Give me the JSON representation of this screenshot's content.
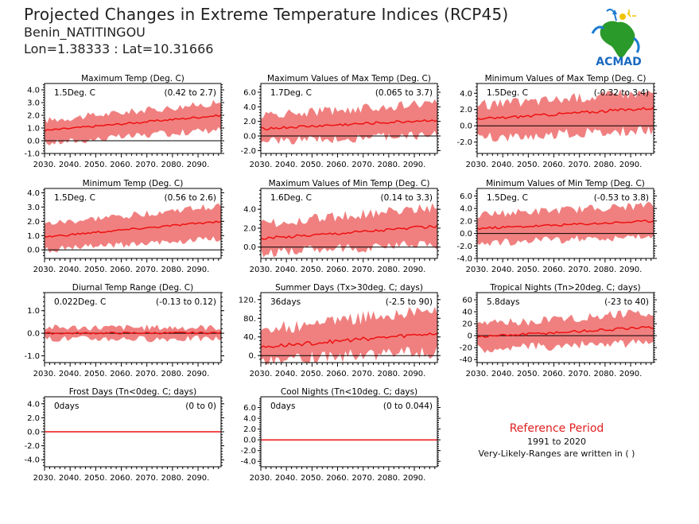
{
  "header": {
    "title": "Projected Changes in Extreme Temperature Indices (RCP45)",
    "station": "Benin_NATITINGOU",
    "coords": "Lon=1.38333 : Lat=10.31666"
  },
  "logo": {
    "text": "ACMAD"
  },
  "reference": {
    "title": "Reference Period",
    "years": "1991 to 2020",
    "note": "Very-Likely-Ranges are written in ( )"
  },
  "colors": {
    "band": "#f08080",
    "line": "#ee1111",
    "zero": "#000000",
    "axis": "#000000"
  },
  "chart_data": [
    {
      "type": "line",
      "title": "Maximum Temp (Deg. C)",
      "value_label": "1.5Deg. C",
      "range_label": "(0.42 to 2.7)",
      "x": [
        2030,
        2099
      ],
      "xticks": [
        "2030.",
        "2040.",
        "2050.",
        "2060.",
        "2070.",
        "2080.",
        "2090."
      ],
      "ylim": [
        -1.0,
        4.5
      ],
      "yticks": [
        4.0,
        3.0,
        2.0,
        1.0,
        0.0,
        -1.0
      ],
      "ytick_labels": [
        "4.0",
        "3.0",
        "2.0",
        "1.0",
        "0.0",
        "-1.0"
      ],
      "trend_start": 0.8,
      "trend_end": 2.0,
      "band_low_start": -0.2,
      "band_low_end": 0.9,
      "band_high_start": 1.6,
      "band_high_end": 3.0,
      "noise": 0.35
    },
    {
      "type": "line",
      "title": "Maximum Values of Max Temp (Deg. C)",
      "value_label": "1.7Deg. C",
      "range_label": "(0.065 to 3.7)",
      "x": [
        2030,
        2099
      ],
      "xticks": [
        "2030.",
        "2040.",
        "2050.",
        "2060.",
        "2070.",
        "2080.",
        "2090."
      ],
      "ylim": [
        -2.4,
        7.2
      ],
      "yticks": [
        6.0,
        4.0,
        2.0,
        0.0,
        -2.0
      ],
      "ytick_labels": [
        "6.0",
        "4.0",
        "2.0",
        "0.0",
        "-2.0"
      ],
      "trend_start": 1.0,
      "trend_end": 2.2,
      "band_low_start": -0.8,
      "band_low_end": 0.2,
      "band_high_start": 2.8,
      "band_high_end": 4.5,
      "noise": 0.8
    },
    {
      "type": "line",
      "title": "Minimum Values of Max Temp (Deg. C)",
      "value_label": "1.5Deg. C",
      "range_label": "(-0.32 to 3.4)",
      "x": [
        2030,
        2099
      ],
      "xticks": [
        "2030.",
        "2040.",
        "2050.",
        "2060.",
        "2070.",
        "2080.",
        "2090."
      ],
      "ylim": [
        -3.4,
        5.2
      ],
      "yticks": [
        4.0,
        2.0,
        0.0,
        -2.0
      ],
      "ytick_labels": [
        "4.0",
        "2.0",
        "0.0",
        "-2.0"
      ],
      "trend_start": 0.8,
      "trend_end": 2.2,
      "band_low_start": -1.5,
      "band_low_end": -0.5,
      "band_high_start": 2.5,
      "band_high_end": 4.2,
      "noise": 0.8
    },
    {
      "type": "line",
      "title": "Minimum Temp (Deg. C)",
      "value_label": "1.5Deg. C",
      "range_label": "(0.56 to 2.6)",
      "x": [
        2030,
        2099
      ],
      "xticks": [
        "2030.",
        "2040.",
        "2050.",
        "2060.",
        "2070.",
        "2080.",
        "2090."
      ],
      "ylim": [
        -0.6,
        4.3
      ],
      "yticks": [
        4.0,
        3.0,
        2.0,
        1.0,
        0.0
      ],
      "ytick_labels": [
        "4.0",
        "3.0",
        "2.0",
        "1.0",
        "0.0"
      ],
      "trend_start": 0.9,
      "trend_end": 2.0,
      "band_low_start": 0.0,
      "band_low_end": 0.8,
      "band_high_start": 1.8,
      "band_high_end": 3.1,
      "noise": 0.3
    },
    {
      "type": "line",
      "title": "Maximum Values of Min Temp (Deg. C)",
      "value_label": "1.6Deg. C",
      "range_label": "(0.14 to 3.3)",
      "x": [
        2030,
        2099
      ],
      "xticks": [
        "2030.",
        "2040.",
        "2050.",
        "2060.",
        "2070.",
        "2080.",
        "2090."
      ],
      "ylim": [
        -1.2,
        6.2
      ],
      "yticks": [
        4.0,
        2.0,
        0.0
      ],
      "ytick_labels": [
        "4.0",
        "2.0",
        "0.0"
      ],
      "trend_start": 0.9,
      "trend_end": 2.2,
      "band_low_start": -0.6,
      "band_low_end": 0.3,
      "band_high_start": 2.4,
      "band_high_end": 4.3,
      "noise": 0.7
    },
    {
      "type": "line",
      "title": "Minimum Values of Min Temp (Deg. C)",
      "value_label": "1.5Deg. C",
      "range_label": "(-0.53 to 3.8)",
      "x": [
        2030,
        2099
      ],
      "xticks": [
        "2030.",
        "2040.",
        "2050.",
        "2060.",
        "2070.",
        "2080.",
        "2090."
      ],
      "ylim": [
        -4.0,
        7.2
      ],
      "yticks": [
        6.0,
        4.0,
        2.0,
        0.0,
        -2.0,
        -4.0
      ],
      "ytick_labels": [
        "6.0",
        "4.0",
        "2.0",
        "0.0",
        "-2.0",
        "-4.0"
      ],
      "trend_start": 0.8,
      "trend_end": 2.0,
      "band_low_start": -1.5,
      "band_low_end": -0.5,
      "band_high_start": 3.0,
      "band_high_end": 4.5,
      "noise": 0.8
    },
    {
      "type": "line",
      "title": "Diurnal Temp Range (Deg. C)",
      "value_label": "0.022Deg. C",
      "range_label": "(-0.13 to 0.12)",
      "x": [
        2030,
        2099
      ],
      "xticks": [
        "2030.",
        "2040.",
        "2050.",
        "2060.",
        "2070.",
        "2080.",
        "2090."
      ],
      "ylim": [
        -1.3,
        1.8
      ],
      "yticks": [
        1.0,
        0.0,
        -1.0
      ],
      "ytick_labels": [
        "1.0",
        "0.0",
        "-1.0"
      ],
      "trend_start": 0.0,
      "trend_end": 0.02,
      "band_low_start": -0.25,
      "band_low_end": -0.25,
      "band_high_start": 0.25,
      "band_high_end": 0.25,
      "noise": 0.18
    },
    {
      "type": "line",
      "title": "Summer Days (Tx>30deg. C; days)",
      "value_label": "36days",
      "range_label": "(-2.5 to 90)",
      "x": [
        2030,
        2099
      ],
      "xticks": [
        "2030.",
        "2040.",
        "2050.",
        "2060.",
        "2070.",
        "2080.",
        "2090."
      ],
      "ylim": [
        -15,
        135
      ],
      "yticks": [
        120.0,
        80.0,
        40.0,
        0.0
      ],
      "ytick_labels": [
        "120.",
        "80.",
        "40.",
        "0."
      ],
      "trend_start": 18,
      "trend_end": 48,
      "band_low_start": -8,
      "band_low_end": 8,
      "band_high_start": 55,
      "band_high_end": 100,
      "noise": 18
    },
    {
      "type": "line",
      "title": "Tropical Nights (Tn>20deg. C; days)",
      "value_label": "5.8days",
      "range_label": "(-23 to 40)",
      "x": [
        2030,
        2099
      ],
      "xticks": [
        "2030.",
        "2040.",
        "2050.",
        "2060.",
        "2070.",
        "2080.",
        "2090."
      ],
      "ylim": [
        -45,
        72
      ],
      "yticks": [
        60,
        40,
        20,
        0,
        -20,
        -40
      ],
      "ytick_labels": [
        "60",
        "40",
        "20",
        "0",
        "-20",
        "-40"
      ],
      "trend_start": -2,
      "trend_end": 14,
      "band_low_start": -22,
      "band_low_end": -12,
      "band_high_start": 18,
      "band_high_end": 40,
      "noise": 10
    },
    {
      "type": "line",
      "title": "Frost Days (Tn<0deg. C; days)",
      "value_label": "0days",
      "range_label": "(0 to 0)",
      "x": [
        2030,
        2099
      ],
      "xticks": [
        "2030.",
        "2040.",
        "2050.",
        "2060.",
        "2070.",
        "2080.",
        "2090."
      ],
      "ylim": [
        -5.0,
        5.0
      ],
      "yticks": [
        4.0,
        2.0,
        0.0,
        -2.0,
        -4.0
      ],
      "ytick_labels": [
        "4.0",
        "2.0",
        "0.0",
        "-2.0",
        "-4.0"
      ],
      "trend_start": 0,
      "trend_end": 0,
      "band_low_start": 0,
      "band_low_end": 0,
      "band_high_start": 0,
      "band_high_end": 0,
      "noise": 0
    },
    {
      "type": "line",
      "title": "Cool Nights (Tn<10deg. C; days)",
      "value_label": "0days",
      "range_label": "(0 to 0.044)",
      "x": [
        2030,
        2099
      ],
      "xticks": [
        "2030.",
        "2040.",
        "2050.",
        "2060.",
        "2070.",
        "2080.",
        "2090."
      ],
      "ylim": [
        -5.0,
        8.0
      ],
      "yticks": [
        6.0,
        4.0,
        2.0,
        0.0,
        -2.0,
        -4.0
      ],
      "ytick_labels": [
        "6.0",
        "4.0",
        "2.0",
        "0.0",
        "-2.0",
        "-4.0"
      ],
      "trend_start": 0,
      "trend_end": 0,
      "band_low_start": 0,
      "band_low_end": 0,
      "band_high_start": 0.05,
      "band_high_end": 0,
      "noise": 0
    }
  ]
}
